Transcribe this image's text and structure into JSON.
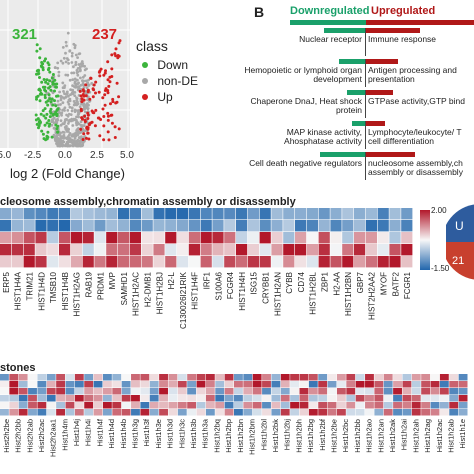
{
  "volcano": {
    "count_down": "321",
    "count_up": "237",
    "xlabel": "log 2 (Fold Change)",
    "x_ticks": [
      "-5.0",
      "-2.5",
      "0.0",
      "2.5",
      "5.0"
    ],
    "legend_title": "class",
    "legend": [
      {
        "label": "Down",
        "color": "#3cb43c"
      },
      {
        "label": "non-DE",
        "color": "#a8a8a8"
      },
      {
        "label": "Up",
        "color": "#d42020"
      }
    ]
  },
  "panel_b": {
    "letter": "B",
    "header_down": "Downregulated",
    "header_up": "Upregulated",
    "down_color": "#1aa06a",
    "up_color": "#b01818",
    "rows": [
      {
        "down_label": "Nuclear receptor",
        "up_label": "Immune response",
        "down_frac": 0.55,
        "up_frac": 0.5
      },
      {
        "down_label": "Hemopoietic or lymphoid organ development",
        "up_label": "Antigen processing and presentation",
        "down_frac": 0.35,
        "up_frac": 0.3
      },
      {
        "down_label": "Chaperone DnaJ, Heat shock protein",
        "up_label": "GTPase activity,GTP bind",
        "down_frac": 0.25,
        "up_frac": 0.25
      },
      {
        "down_label": "MAP kinase activity, Ahosphatase activity",
        "up_label": "Lymphocyte/leukocyte/ T cell differentiation",
        "down_frac": 0.18,
        "up_frac": 0.18
      },
      {
        "down_label": "Cell death negative regulators",
        "up_label": "nucleosome assembly,ch assembly or disassembly",
        "down_frac": 0.6,
        "up_frac": 0.45
      }
    ]
  },
  "heatmap1": {
    "title": "cleosome assembly,chromatin assembly or disassembly",
    "scale_max": "2.00",
    "scale_min": "-1.50",
    "genes": [
      "ERP5",
      "HIST1H4A",
      "TRIM21",
      "HIST1H4D",
      "TMSB10",
      "HIST1H4B",
      "HIST1H2AG",
      "RAB19",
      "PRDM1",
      "MVP",
      "SAMHD1",
      "HIST1H2AC",
      "H2-DMB1",
      "HIST1H2BJ",
      "H2-L",
      "C130026I21RIK",
      "HIST1H4F",
      "IRF1",
      "S100A6",
      "FCGR4",
      "HIST1H4H",
      "ISG15",
      "CRYBB1",
      "HIST1H2AN",
      "CYBB",
      "CD74",
      "HIST1H2BL",
      "ZBP1",
      "H2-AA",
      "HIST1H2BN",
      "GBP7",
      "HIST2H2AA2",
      "MYOF",
      "BATF2",
      "FCGR1"
    ],
    "cells_note": "expression heatmap, 5 rows"
  },
  "heatmap2": {
    "title": "stones",
    "genes": [
      "Hist2h2be",
      "Hist2h2bb",
      "Hist2h2ab",
      "Hist2h2ac",
      "Hist2h2aa1",
      "Hist1h4m",
      "Hist1h4j",
      "Hist1h4i",
      "Hist1h4f",
      "Hist1h4d",
      "Hist1h4b",
      "Hist1h3g",
      "Hist1h3f",
      "Hist1h3e",
      "Hist1h3d",
      "Hist1h3c",
      "Hist1h3b",
      "Hist1h3a",
      "Hist1h2bq",
      "Hist1h2bp",
      "Hist1h2bn",
      "Hist1h2bm",
      "Hist1h2bl",
      "Hist1h2bk",
      "Hist1h2bj",
      "Hist1h2bh",
      "Hist1h2bg",
      "Hist1h2bf",
      "Hist1h2be",
      "Hist1h2bc",
      "Hist1h2bb",
      "Hist1h2ao",
      "Hist1h2an",
      "Hist1h2ak",
      "Hist1h2ai",
      "Hist1h2ah",
      "Hist1h2ag",
      "Hist1h2ac",
      "Hist1h2ab",
      "Hist1h1e"
    ]
  },
  "pie": {
    "label_top": "U",
    "label_bottom": "21"
  }
}
